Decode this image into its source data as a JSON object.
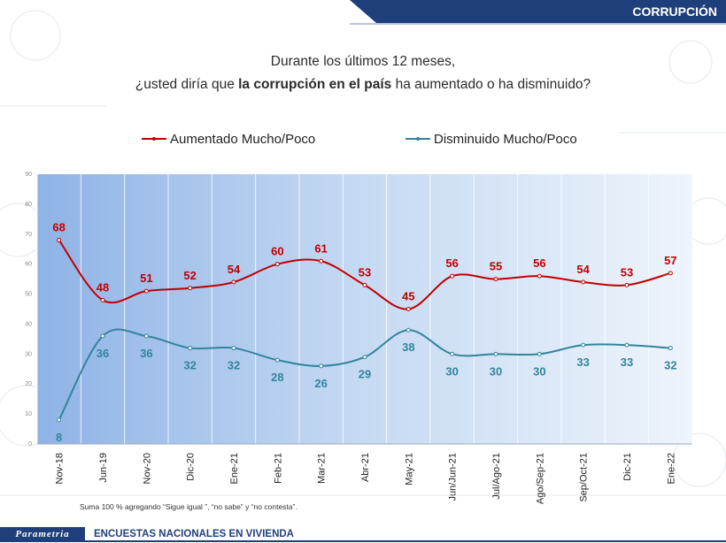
{
  "header": {
    "title": "CORRUPCIÓN"
  },
  "question": {
    "line1": "Durante los últimos 12 meses,",
    "line2_pre": "¿usted diría que ",
    "line2_bold": "la corrupción en el país",
    "line2_post": " ha aumentado o ha disminuido?"
  },
  "legend": {
    "aumentado": "Aumentado Mucho/Poco",
    "disminuido": "Disminuido Mucho/Poco"
  },
  "footnote": "Suma 100 %  agregando “Sigue igual ”, “no sabe” y “no contesta”.",
  "footer": {
    "logo": "Parametria",
    "text": "ENCUESTAS NACIONALES EN VIVIENDA"
  },
  "colors": {
    "aumentado": "#c00000",
    "disminuido": "#31859c",
    "header": "#1f3f7a"
  },
  "chart_data": {
    "type": "line",
    "categories": [
      "Nov-18",
      "Jun-19",
      "Nov-20",
      "Dic-20",
      "Ene-21",
      "Feb-21",
      "Mar-21",
      "Abr-21",
      "May-21",
      "Jun/Jun-21",
      "Jul/Ago-21",
      "Ago/Sep-21",
      "Sep/Oct-21",
      "Dic-21",
      "Ene-22"
    ],
    "series": [
      {
        "name": "Aumentado Mucho/Poco",
        "values": [
          68,
          48,
          51,
          52,
          54,
          60,
          61,
          53,
          45,
          56,
          55,
          56,
          54,
          53,
          57
        ]
      },
      {
        "name": "Disminuido Mucho/Poco",
        "values": [
          8,
          36,
          36,
          32,
          32,
          28,
          26,
          29,
          38,
          30,
          30,
          30,
          33,
          33,
          32
        ]
      }
    ],
    "ylim": [
      0,
      90
    ],
    "yticks": [
      0,
      10,
      20,
      30,
      40,
      50,
      60,
      70,
      80,
      90
    ],
    "grid": "vertical",
    "legend_position": "top"
  }
}
